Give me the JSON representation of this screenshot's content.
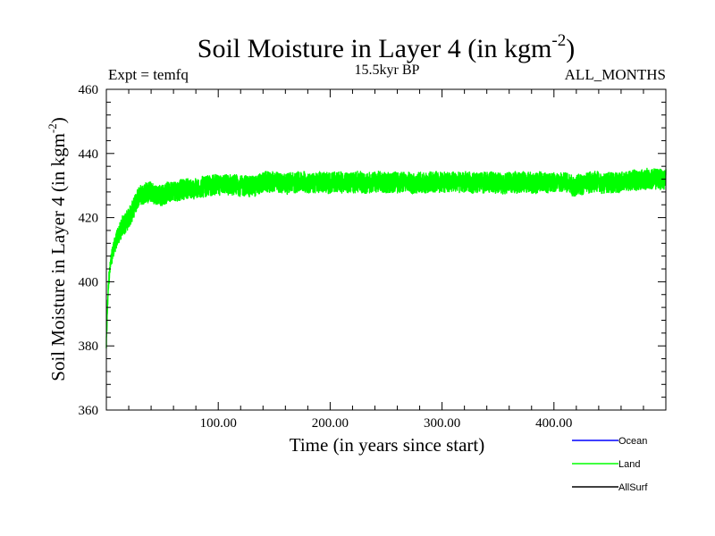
{
  "chart_data": {
    "type": "line",
    "title_main": "Soil Moisture in Layer 4 (in kgm",
    "title_sup": "-2",
    "title_end": ")",
    "subtitle_left": "Expt = temfq",
    "subtitle_center": "15.5kyr BP",
    "subtitle_right": "ALL_MONTHS",
    "xlabel": "Time (in years since start)",
    "ylabel_main": "Soil Moisture in Layer 4 (in kgm",
    "ylabel_sup": "-2",
    "ylabel_end": ")",
    "xlim": [
      0,
      500
    ],
    "ylim": [
      360,
      460
    ],
    "x_ticks": [
      100,
      200,
      300,
      400
    ],
    "x_tick_labels": [
      "100.00",
      "200.00",
      "300.00",
      "400.00"
    ],
    "y_ticks": [
      360,
      380,
      400,
      420,
      440,
      460
    ],
    "y_tick_labels": [
      "360",
      "380",
      "400",
      "420",
      "440",
      "460"
    ],
    "x_minor_step": 20,
    "y_minor_step": 4,
    "series": [
      {
        "name": "Land",
        "color": "#00ff00",
        "anchor_x": [
          0,
          1,
          2,
          4,
          6,
          8,
          10,
          14,
          18,
          22,
          26,
          30,
          35,
          40,
          45,
          50,
          55,
          60,
          70,
          80,
          90,
          100,
          110,
          120,
          130,
          140,
          150,
          160,
          170,
          180,
          190,
          200,
          210,
          220,
          230,
          240,
          250,
          260,
          270,
          280,
          290,
          300,
          310,
          320,
          330,
          340,
          350,
          360,
          370,
          380,
          390,
          400,
          410,
          420,
          430,
          440,
          450,
          460,
          470,
          480,
          490,
          500
        ],
        "anchor_y": [
          380,
          392,
          400,
          406,
          410,
          412,
          414,
          417,
          419,
          421,
          424,
          427,
          428,
          428,
          427,
          427,
          428,
          428,
          429,
          429,
          430,
          430,
          430,
          430,
          430,
          431,
          431,
          431,
          431,
          431,
          431,
          431,
          431,
          431,
          431,
          431,
          431,
          431,
          431,
          431,
          431,
          431,
          431,
          431,
          431,
          431,
          431,
          431,
          431,
          431,
          431,
          431,
          431,
          430,
          431,
          431,
          431,
          431,
          432,
          432,
          432,
          432
        ],
        "noise_amplitude": 3.2,
        "samples_per_year": 12
      },
      {
        "name": "Ocean",
        "color": "#0000ff"
      },
      {
        "name": "AllSurf",
        "color": "#000000"
      }
    ],
    "legend": {
      "position": "bottom-right",
      "entries": [
        {
          "label": "Ocean",
          "color": "#0000ff"
        },
        {
          "label": "Land",
          "color": "#00ff00"
        },
        {
          "label": "AllSurf",
          "color": "#000000"
        }
      ]
    }
  }
}
